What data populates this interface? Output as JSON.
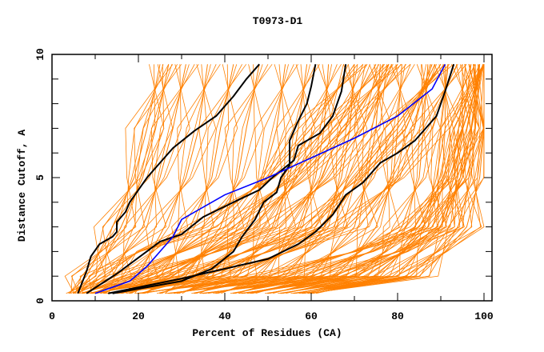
{
  "chart_data": {
    "type": "line",
    "title": "T0973-D1",
    "xlabel": "Percent of Residues (CA)",
    "ylabel": "Distance Cutoff, A",
    "xlim": [
      0,
      100
    ],
    "ylim": [
      0,
      10
    ],
    "x_ticks": [
      0,
      20,
      40,
      60,
      80,
      100
    ],
    "x_tick_labels": [
      "0",
      "20",
      "40",
      "60",
      "80",
      "100"
    ],
    "y_ticks": [
      0,
      5,
      10
    ],
    "y_tick_labels": [
      "0",
      "5",
      "10"
    ],
    "grid": false,
    "colors": {
      "other_models": "#ff8000",
      "highlight_models": "#000000",
      "selected_model": "#0000ff"
    },
    "orange_y_levels": [
      0.3,
      1,
      2,
      3,
      5,
      7,
      9.6
    ],
    "orange_series_x": [
      [
        5,
        10,
        13,
        16,
        21,
        24,
        27
      ],
      [
        8,
        14,
        17,
        21,
        25,
        28,
        31
      ],
      [
        12,
        20,
        23,
        26,
        31,
        34,
        36
      ],
      [
        16,
        25,
        29,
        32,
        37,
        39,
        42
      ],
      [
        21,
        31,
        35,
        39,
        43,
        45,
        48
      ],
      [
        25,
        37,
        41,
        45,
        49,
        52,
        54
      ],
      [
        29,
        43,
        47,
        51,
        55,
        57,
        59
      ],
      [
        33,
        48,
        53,
        57,
        61,
        63,
        64
      ],
      [
        38,
        54,
        59,
        63,
        67,
        69,
        70
      ],
      [
        42,
        60,
        65,
        70,
        73,
        75,
        76
      ],
      [
        46,
        66,
        71,
        75,
        79,
        80,
        81
      ],
      [
        50,
        71,
        77,
        81,
        85,
        86,
        87
      ],
      [
        53,
        76,
        81,
        86,
        89,
        91,
        91
      ],
      [
        56,
        80,
        85,
        90,
        93,
        95,
        95
      ],
      [
        58,
        83,
        89,
        94,
        97,
        98,
        98
      ],
      [
        60,
        85,
        91,
        96,
        99,
        100,
        100
      ],
      [
        10,
        30,
        45,
        60,
        70,
        80,
        90
      ],
      [
        20,
        50,
        70,
        85,
        92,
        96,
        99
      ],
      [
        6,
        12,
        20,
        35,
        50,
        60,
        70
      ],
      [
        35,
        65,
        80,
        90,
        95,
        98,
        99
      ],
      [
        7,
        18,
        30,
        42,
        55,
        66,
        75
      ],
      [
        15,
        40,
        55,
        68,
        80,
        88,
        93
      ],
      [
        27,
        58,
        74,
        84,
        91,
        95,
        97
      ],
      [
        9,
        22,
        38,
        52,
        64,
        72,
        80
      ],
      [
        4,
        8,
        11,
        14,
        19,
        22,
        25
      ],
      [
        13,
        35,
        50,
        62,
        72,
        82,
        88
      ],
      [
        44,
        70,
        82,
        89,
        95,
        97,
        99
      ],
      [
        18,
        28,
        36,
        46,
        58,
        68,
        78
      ]
    ],
    "highlight_series": [
      {
        "x": [
          6,
          8,
          9,
          11,
          14,
          15,
          15,
          17,
          18,
          20,
          22,
          25,
          28,
          33,
          38,
          42,
          45,
          48
        ],
        "y": [
          0.3,
          1.2,
          1.8,
          2.3,
          2.6,
          2.8,
          3.2,
          3.6,
          4.0,
          4.5,
          5.0,
          5.6,
          6.2,
          6.9,
          7.5,
          8.3,
          9.0,
          9.6
        ]
      },
      {
        "x": [
          8,
          15,
          25,
          30,
          35,
          42,
          48,
          51,
          56,
          57,
          62,
          65,
          67,
          68
        ],
        "y": [
          0.3,
          1.1,
          2.4,
          2.7,
          3.4,
          4.0,
          4.5,
          5.0,
          5.7,
          6.3,
          6.8,
          7.5,
          8.5,
          9.6
        ]
      },
      {
        "x": [
          14,
          30,
          37,
          42,
          44,
          47,
          49,
          52,
          53,
          55,
          55,
          57,
          59,
          60,
          61
        ],
        "y": [
          0.3,
          0.8,
          1.3,
          2.0,
          2.6,
          3.3,
          4.0,
          4.4,
          5.0,
          5.5,
          6.5,
          7.3,
          8.0,
          8.7,
          9.6
        ]
      },
      {
        "x": [
          13,
          30,
          50,
          57,
          61,
          65,
          68,
          72,
          76,
          80,
          84,
          89,
          91,
          93
        ],
        "y": [
          0.3,
          0.9,
          1.7,
          2.3,
          2.8,
          3.5,
          4.3,
          4.8,
          5.6,
          6.0,
          6.5,
          7.5,
          8.5,
          9.6
        ]
      }
    ],
    "selected_series": {
      "x": [
        10,
        18,
        22,
        25,
        28,
        30,
        40,
        50,
        60,
        70,
        80,
        88,
        91
      ],
      "y": [
        0.3,
        0.8,
        1.4,
        2.0,
        2.6,
        3.3,
        4.3,
        5.0,
        5.8,
        6.6,
        7.5,
        8.6,
        9.6
      ]
    }
  }
}
